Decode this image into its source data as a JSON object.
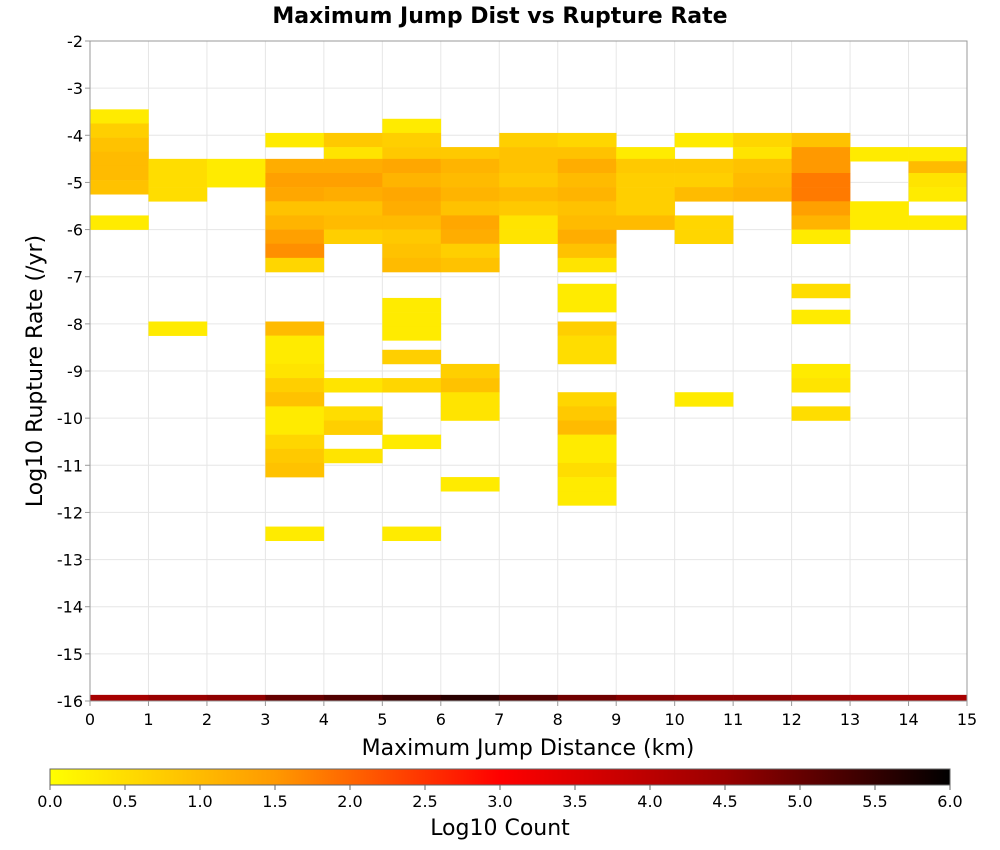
{
  "chart_data": {
    "type": "heatmap",
    "title": "Maximum Jump Dist vs Rupture Rate",
    "xlabel": "Maximum Jump Distance (km)",
    "ylabel": "Log10 Rupture Rate (/yr)",
    "xlim": [
      0,
      15
    ],
    "ylim": [
      -16,
      -2
    ],
    "xticks": [
      "0",
      "1",
      "2",
      "3",
      "4",
      "5",
      "6",
      "7",
      "8",
      "9",
      "10",
      "11",
      "12",
      "13",
      "14",
      "15"
    ],
    "yticks": [
      "-2",
      "-3",
      "-4",
      "-5",
      "-6",
      "-7",
      "-8",
      "-9",
      "-10",
      "-11",
      "-12",
      "-13",
      "-14",
      "-15",
      "-16"
    ],
    "bin": {
      "dx": 1,
      "dy": 0.3
    },
    "grid": true,
    "colorbar": {
      "label": "Log10 Count",
      "range": [
        0,
        6
      ],
      "ticks": [
        "0.0",
        "0.5",
        "1.0",
        "1.5",
        "2.0",
        "2.5",
        "3.0",
        "3.5",
        "4.0",
        "4.5",
        "5.0",
        "5.5",
        "6.0"
      ],
      "colors": [
        "#ffff00",
        "#ff9900",
        "#ff0000",
        "#990000",
        "#000000"
      ]
    },
    "cells": [
      {
        "x": 0,
        "y": -3.6,
        "v": 0.3
      },
      {
        "x": 0,
        "y": -3.9,
        "v": 0.7
      },
      {
        "x": 0,
        "y": -4.2,
        "v": 0.9
      },
      {
        "x": 0,
        "y": -4.5,
        "v": 1.0
      },
      {
        "x": 0,
        "y": -4.8,
        "v": 1.0
      },
      {
        "x": 0,
        "y": -5.1,
        "v": 0.9
      },
      {
        "x": 0,
        "y": -5.85,
        "v": 0.3
      },
      {
        "x": 1,
        "y": -4.65,
        "v": 0.5
      },
      {
        "x": 1,
        "y": -4.95,
        "v": 0.5
      },
      {
        "x": 1,
        "y": -5.25,
        "v": 0.5
      },
      {
        "x": 1,
        "y": -8.1,
        "v": 0.3
      },
      {
        "x": 2,
        "y": -4.65,
        "v": 0.3
      },
      {
        "x": 2,
        "y": -4.95,
        "v": 0.3
      },
      {
        "x": 3,
        "y": -4.1,
        "v": 0.3
      },
      {
        "x": 3,
        "y": -4.65,
        "v": 1.2
      },
      {
        "x": 3,
        "y": -4.95,
        "v": 1.4
      },
      {
        "x": 3,
        "y": -5.25,
        "v": 1.3
      },
      {
        "x": 3,
        "y": -5.55,
        "v": 0.9
      },
      {
        "x": 3,
        "y": -5.85,
        "v": 1.1
      },
      {
        "x": 3,
        "y": -6.15,
        "v": 1.4
      },
      {
        "x": 3,
        "y": -6.45,
        "v": 1.6
      },
      {
        "x": 3,
        "y": -6.75,
        "v": 0.6
      },
      {
        "x": 3,
        "y": -8.1,
        "v": 1.0
      },
      {
        "x": 3,
        "y": -8.4,
        "v": 0.3
      },
      {
        "x": 3,
        "y": -8.7,
        "v": 0.3
      },
      {
        "x": 3,
        "y": -9.0,
        "v": 0.4
      },
      {
        "x": 3,
        "y": -9.3,
        "v": 0.7
      },
      {
        "x": 3,
        "y": -9.6,
        "v": 0.9
      },
      {
        "x": 3,
        "y": -9.9,
        "v": 0.3
      },
      {
        "x": 3,
        "y": -10.2,
        "v": 0.3
      },
      {
        "x": 3,
        "y": -10.5,
        "v": 0.6
      },
      {
        "x": 3,
        "y": -10.8,
        "v": 0.8
      },
      {
        "x": 3,
        "y": -11.1,
        "v": 0.9
      },
      {
        "x": 3,
        "y": -12.45,
        "v": 0.3
      },
      {
        "x": 4,
        "y": -4.1,
        "v": 0.8
      },
      {
        "x": 4,
        "y": -4.4,
        "v": 0.4
      },
      {
        "x": 4,
        "y": -4.65,
        "v": 1.2
      },
      {
        "x": 4,
        "y": -4.95,
        "v": 1.4
      },
      {
        "x": 4,
        "y": -5.25,
        "v": 1.2
      },
      {
        "x": 4,
        "y": -5.55,
        "v": 0.9
      },
      {
        "x": 4,
        "y": -5.85,
        "v": 1.0
      },
      {
        "x": 4,
        "y": -6.15,
        "v": 0.7
      },
      {
        "x": 4,
        "y": -9.3,
        "v": 0.4
      },
      {
        "x": 4,
        "y": -9.9,
        "v": 0.5
      },
      {
        "x": 4,
        "y": -10.2,
        "v": 0.7
      },
      {
        "x": 4,
        "y": -10.8,
        "v": 0.4
      },
      {
        "x": 5,
        "y": -3.8,
        "v": 0.3
      },
      {
        "x": 5,
        "y": -4.1,
        "v": 0.7
      },
      {
        "x": 5,
        "y": -4.4,
        "v": 0.8
      },
      {
        "x": 5,
        "y": -4.65,
        "v": 1.3
      },
      {
        "x": 5,
        "y": -4.95,
        "v": 1.1
      },
      {
        "x": 5,
        "y": -5.25,
        "v": 1.3
      },
      {
        "x": 5,
        "y": -5.55,
        "v": 1.2
      },
      {
        "x": 5,
        "y": -5.85,
        "v": 1.0
      },
      {
        "x": 5,
        "y": -6.15,
        "v": 0.8
      },
      {
        "x": 5,
        "y": -6.45,
        "v": 0.9
      },
      {
        "x": 5,
        "y": -6.75,
        "v": 1.0
      },
      {
        "x": 5,
        "y": -7.6,
        "v": 0.3
      },
      {
        "x": 5,
        "y": -7.9,
        "v": 0.3
      },
      {
        "x": 5,
        "y": -8.2,
        "v": 0.3
      },
      {
        "x": 5,
        "y": -8.7,
        "v": 0.7
      },
      {
        "x": 5,
        "y": -9.3,
        "v": 0.6
      },
      {
        "x": 5,
        "y": -10.5,
        "v": 0.3
      },
      {
        "x": 5,
        "y": -12.45,
        "v": 0.3
      },
      {
        "x": 6,
        "y": -4.4,
        "v": 0.8
      },
      {
        "x": 6,
        "y": -4.65,
        "v": 1.1
      },
      {
        "x": 6,
        "y": -4.95,
        "v": 1.0
      },
      {
        "x": 6,
        "y": -5.25,
        "v": 1.1
      },
      {
        "x": 6,
        "y": -5.55,
        "v": 0.9
      },
      {
        "x": 6,
        "y": -5.85,
        "v": 1.3
      },
      {
        "x": 6,
        "y": -6.15,
        "v": 1.2
      },
      {
        "x": 6,
        "y": -6.45,
        "v": 0.7
      },
      {
        "x": 6,
        "y": -6.75,
        "v": 0.9
      },
      {
        "x": 6,
        "y": -9.0,
        "v": 0.7
      },
      {
        "x": 6,
        "y": -9.3,
        "v": 0.9
      },
      {
        "x": 6,
        "y": -9.6,
        "v": 0.4
      },
      {
        "x": 6,
        "y": -9.9,
        "v": 0.4
      },
      {
        "x": 6,
        "y": -11.4,
        "v": 0.3
      },
      {
        "x": 7,
        "y": -4.1,
        "v": 0.7
      },
      {
        "x": 7,
        "y": -4.4,
        "v": 0.9
      },
      {
        "x": 7,
        "y": -4.65,
        "v": 0.9
      },
      {
        "x": 7,
        "y": -4.95,
        "v": 0.8
      },
      {
        "x": 7,
        "y": -5.25,
        "v": 1.0
      },
      {
        "x": 7,
        "y": -5.55,
        "v": 0.8
      },
      {
        "x": 7,
        "y": -5.85,
        "v": 0.4
      },
      {
        "x": 7,
        "y": -6.15,
        "v": 0.4
      },
      {
        "x": 8,
        "y": -4.1,
        "v": 0.6
      },
      {
        "x": 8,
        "y": -4.4,
        "v": 0.9
      },
      {
        "x": 8,
        "y": -4.65,
        "v": 1.2
      },
      {
        "x": 8,
        "y": -4.95,
        "v": 1.0
      },
      {
        "x": 8,
        "y": -5.25,
        "v": 1.1
      },
      {
        "x": 8,
        "y": -5.55,
        "v": 0.9
      },
      {
        "x": 8,
        "y": -5.85,
        "v": 1.0
      },
      {
        "x": 8,
        "y": -6.15,
        "v": 1.2
      },
      {
        "x": 8,
        "y": -6.45,
        "v": 0.9
      },
      {
        "x": 8,
        "y": -6.75,
        "v": 0.4
      },
      {
        "x": 8,
        "y": -7.3,
        "v": 0.3
      },
      {
        "x": 8,
        "y": -7.6,
        "v": 0.3
      },
      {
        "x": 8,
        "y": -8.1,
        "v": 0.7
      },
      {
        "x": 8,
        "y": -8.4,
        "v": 0.5
      },
      {
        "x": 8,
        "y": -8.7,
        "v": 0.5
      },
      {
        "x": 8,
        "y": -9.6,
        "v": 0.6
      },
      {
        "x": 8,
        "y": -9.9,
        "v": 0.8
      },
      {
        "x": 8,
        "y": -10.2,
        "v": 1.0
      },
      {
        "x": 8,
        "y": -10.5,
        "v": 0.3
      },
      {
        "x": 8,
        "y": -10.8,
        "v": 0.3
      },
      {
        "x": 8,
        "y": -11.1,
        "v": 0.5
      },
      {
        "x": 8,
        "y": -11.4,
        "v": 0.3
      },
      {
        "x": 8,
        "y": -11.7,
        "v": 0.3
      },
      {
        "x": 9,
        "y": -4.4,
        "v": 0.3
      },
      {
        "x": 9,
        "y": -4.65,
        "v": 0.8
      },
      {
        "x": 9,
        "y": -4.95,
        "v": 0.7
      },
      {
        "x": 9,
        "y": -5.25,
        "v": 0.7
      },
      {
        "x": 9,
        "y": -5.55,
        "v": 0.7
      },
      {
        "x": 9,
        "y": -5.85,
        "v": 1.0
      },
      {
        "x": 10,
        "y": -4.1,
        "v": 0.3
      },
      {
        "x": 10,
        "y": -4.65,
        "v": 0.8
      },
      {
        "x": 10,
        "y": -4.95,
        "v": 0.7
      },
      {
        "x": 10,
        "y": -5.25,
        "v": 1.0
      },
      {
        "x": 10,
        "y": -5.85,
        "v": 0.6
      },
      {
        "x": 10,
        "y": -6.15,
        "v": 0.6
      },
      {
        "x": 10,
        "y": -9.6,
        "v": 0.3
      },
      {
        "x": 11,
        "y": -4.1,
        "v": 0.6
      },
      {
        "x": 11,
        "y": -4.4,
        "v": 0.4
      },
      {
        "x": 11,
        "y": -4.65,
        "v": 0.9
      },
      {
        "x": 11,
        "y": -4.95,
        "v": 1.0
      },
      {
        "x": 11,
        "y": -5.25,
        "v": 1.1
      },
      {
        "x": 12,
        "y": -4.1,
        "v": 0.9
      },
      {
        "x": 12,
        "y": -4.4,
        "v": 1.5
      },
      {
        "x": 12,
        "y": -4.65,
        "v": 1.5
      },
      {
        "x": 12,
        "y": -4.95,
        "v": 1.8
      },
      {
        "x": 12,
        "y": -5.25,
        "v": 1.8
      },
      {
        "x": 12,
        "y": -5.55,
        "v": 1.4
      },
      {
        "x": 12,
        "y": -5.85,
        "v": 1.1
      },
      {
        "x": 12,
        "y": -6.15,
        "v": 0.3
      },
      {
        "x": 12,
        "y": -7.3,
        "v": 0.5
      },
      {
        "x": 12,
        "y": -7.85,
        "v": 0.3
      },
      {
        "x": 12,
        "y": -9.0,
        "v": 0.3
      },
      {
        "x": 12,
        "y": -9.3,
        "v": 0.4
      },
      {
        "x": 12,
        "y": -9.9,
        "v": 0.5
      },
      {
        "x": 13,
        "y": -4.4,
        "v": 0.3
      },
      {
        "x": 13,
        "y": -5.55,
        "v": 0.3
      },
      {
        "x": 13,
        "y": -5.85,
        "v": 0.3
      },
      {
        "x": 14,
        "y": -4.4,
        "v": 0.3
      },
      {
        "x": 14,
        "y": -4.7,
        "v": 1.0
      },
      {
        "x": 14,
        "y": -4.95,
        "v": 0.4
      },
      {
        "x": 14,
        "y": -5.25,
        "v": 0.3
      },
      {
        "x": 14,
        "y": -5.85,
        "v": 0.3
      }
    ],
    "base_row": {
      "y_top": -15.87,
      "y_bottom": -16.0,
      "values": [
        4.3,
        4.5,
        4.6,
        5.0,
        5.2,
        5.4,
        5.6,
        5.2,
        4.9,
        4.7,
        4.6,
        4.6,
        4.5,
        4.3,
        4.3
      ]
    }
  }
}
